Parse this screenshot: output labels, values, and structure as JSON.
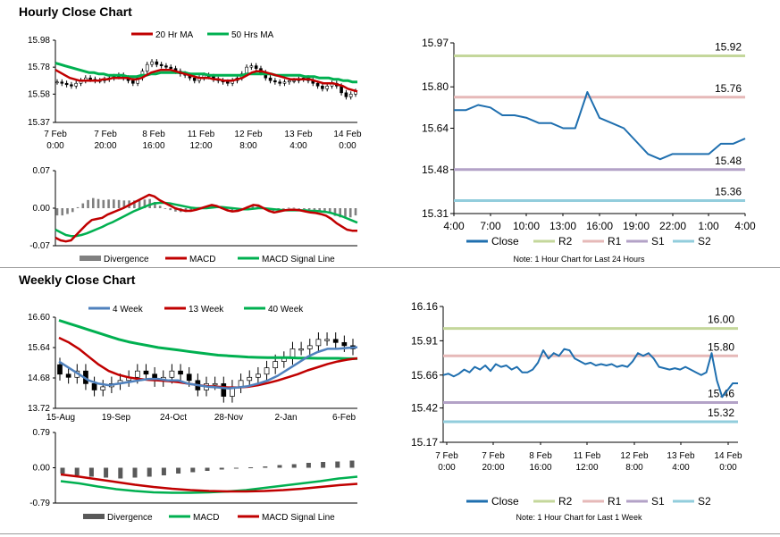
{
  "sections": {
    "hourly_title": "Hourly Close Chart",
    "weekly_title": "Weekly Close Chart"
  },
  "colors": {
    "red": "#c00000",
    "green": "#00b050",
    "blue": "#4f81bd",
    "close_blue": "#1f6faf",
    "r2": "#c4d79b",
    "r1": "#e6b9b8",
    "s1": "#b3a2c7",
    "s2": "#92cddc",
    "divergence": "#808080"
  },
  "chart_data": [
    {
      "id": "hourly-price",
      "type": "candlestick",
      "legend": [
        "20 Hr MA",
        "50 Hrs MA"
      ],
      "ylim": [
        15.37,
        15.98
      ],
      "yticks": [
        "15.98",
        "15.78",
        "15.58",
        "15.37"
      ],
      "xticks": [
        [
          "7 Feb",
          "0:00"
        ],
        [
          "7 Feb",
          "20:00"
        ],
        [
          "8 Feb",
          "16:00"
        ],
        [
          "11 Feb",
          "12:00"
        ],
        [
          "12 Feb",
          "8:00"
        ],
        [
          "13 Feb",
          "4:00"
        ],
        [
          "14 Feb",
          "0:00"
        ]
      ],
      "close": [
        15.67,
        15.66,
        15.65,
        15.64,
        15.66,
        15.68,
        15.7,
        15.69,
        15.68,
        15.68,
        15.69,
        15.7,
        15.71,
        15.72,
        15.7,
        15.68,
        15.66,
        15.7,
        15.75,
        15.8,
        15.82,
        15.8,
        15.79,
        15.78,
        15.77,
        15.75,
        15.73,
        15.72,
        15.7,
        15.68,
        15.7,
        15.72,
        15.71,
        15.69,
        15.68,
        15.67,
        15.66,
        15.68,
        15.7,
        15.73,
        15.78,
        15.79,
        15.77,
        15.74,
        15.7,
        15.68,
        15.67,
        15.66,
        15.67,
        15.68,
        15.68,
        15.69,
        15.7,
        15.68,
        15.66,
        15.64,
        15.62,
        15.64,
        15.66,
        15.64,
        15.59,
        15.56,
        15.58,
        15.6
      ],
      "ma20": [
        15.76,
        15.74,
        15.72,
        15.7,
        15.69,
        15.68,
        15.68,
        15.68,
        15.68,
        15.68,
        15.69,
        15.69,
        15.7,
        15.7,
        15.7,
        15.7,
        15.69,
        15.69,
        15.7,
        15.72,
        15.74,
        15.75,
        15.76,
        15.76,
        15.76,
        15.75,
        15.74,
        15.73,
        15.72,
        15.71,
        15.7,
        15.7,
        15.7,
        15.69,
        15.69,
        15.68,
        15.68,
        15.68,
        15.69,
        15.7,
        15.72,
        15.74,
        15.75,
        15.75,
        15.74,
        15.73,
        15.72,
        15.71,
        15.7,
        15.69,
        15.69,
        15.69,
        15.69,
        15.69,
        15.68,
        15.67,
        15.66,
        15.66,
        15.66,
        15.65,
        15.64,
        15.62,
        15.61,
        15.6
      ],
      "ma50": [
        15.81,
        15.8,
        15.79,
        15.78,
        15.77,
        15.76,
        15.75,
        15.74,
        15.74,
        15.73,
        15.73,
        15.72,
        15.72,
        15.72,
        15.72,
        15.71,
        15.71,
        15.71,
        15.72,
        15.72,
        15.73,
        15.73,
        15.74,
        15.74,
        15.74,
        15.74,
        15.74,
        15.74,
        15.73,
        15.73,
        15.73,
        15.73,
        15.72,
        15.72,
        15.72,
        15.72,
        15.72,
        15.72,
        15.72,
        15.72,
        15.73,
        15.73,
        15.73,
        15.73,
        15.73,
        15.73,
        15.72,
        15.72,
        15.72,
        15.72,
        15.72,
        15.72,
        15.71,
        15.71,
        15.71,
        15.7,
        15.7,
        15.7,
        15.69,
        15.69,
        15.68,
        15.68,
        15.67,
        15.67
      ]
    },
    {
      "id": "hourly-macd",
      "type": "macd",
      "legend": [
        "Divergence",
        "MACD",
        "MACD Signal Line"
      ],
      "ylim": [
        -0.07,
        0.07
      ],
      "yticks": [
        "0.07",
        "0.00",
        "-0.07"
      ],
      "macd": [
        -0.055,
        -0.06,
        -0.062,
        -0.06,
        -0.05,
        -0.04,
        -0.03,
        -0.022,
        -0.02,
        -0.018,
        -0.012,
        -0.008,
        -0.004,
        0.0,
        0.005,
        0.01,
        0.015,
        0.02,
        0.025,
        0.022,
        0.015,
        0.01,
        0.005,
        0.0,
        -0.003,
        -0.005,
        -0.005,
        -0.003,
        0.0,
        0.003,
        0.006,
        0.004,
        0.0,
        -0.004,
        -0.006,
        -0.005,
        -0.002,
        0.002,
        0.006,
        0.005,
        0.0,
        -0.005,
        -0.008,
        -0.006,
        -0.004,
        -0.003,
        -0.003,
        -0.004,
        -0.006,
        -0.008,
        -0.009,
        -0.011,
        -0.014,
        -0.02,
        -0.028,
        -0.034,
        -0.04,
        -0.042,
        -0.042
      ],
      "signal": [
        -0.04,
        -0.045,
        -0.05,
        -0.052,
        -0.052,
        -0.05,
        -0.047,
        -0.043,
        -0.039,
        -0.035,
        -0.03,
        -0.026,
        -0.021,
        -0.016,
        -0.011,
        -0.006,
        -0.002,
        0.002,
        0.006,
        0.009,
        0.01,
        0.01,
        0.009,
        0.007,
        0.005,
        0.003,
        0.001,
        0.0,
        0.0,
        0.0,
        0.001,
        0.002,
        0.002,
        0.001,
        0.0,
        -0.001,
        -0.002,
        -0.002,
        -0.001,
        0.0,
        0.0,
        -0.001,
        -0.002,
        -0.003,
        -0.004,
        -0.004,
        -0.004,
        -0.004,
        -0.004,
        -0.005,
        -0.005,
        -0.006,
        -0.007,
        -0.009,
        -0.012,
        -0.015,
        -0.019,
        -0.023,
        -0.027
      ]
    },
    {
      "id": "hourly-levels",
      "type": "line",
      "ylim": [
        15.31,
        15.97
      ],
      "yticks": [
        "15.97",
        "15.80",
        "15.64",
        "15.48",
        "15.31"
      ],
      "xticks": [
        "4:00",
        "7:00",
        "10:00",
        "13:00",
        "16:00",
        "19:00",
        "22:00",
        "1:00",
        "4:00"
      ],
      "close": [
        15.71,
        15.71,
        15.73,
        15.72,
        15.69,
        15.69,
        15.68,
        15.66,
        15.66,
        15.64,
        15.64,
        15.78,
        15.68,
        15.66,
        15.64,
        15.59,
        15.54,
        15.52,
        15.54,
        15.54,
        15.54,
        15.54,
        15.58,
        15.58,
        15.6
      ],
      "levels": [
        {
          "name": "R2",
          "value": 15.92,
          "label": "15.92"
        },
        {
          "name": "R1",
          "value": 15.76,
          "label": "15.76"
        },
        {
          "name": "S1",
          "value": 15.48,
          "label": "15.48"
        },
        {
          "name": "S2",
          "value": 15.36,
          "label": "15.36"
        }
      ],
      "legend": [
        "Close",
        "R2",
        "R1",
        "S1",
        "S2"
      ],
      "note": "Note: 1 Hour Chart for Last 24 Hours"
    },
    {
      "id": "weekly-price",
      "type": "candlestick",
      "legend": [
        "4 Week",
        "13 Week",
        "40 Week"
      ],
      "ylim": [
        13.72,
        16.6
      ],
      "yticks": [
        "16.60",
        "15.64",
        "14.68",
        "13.72"
      ],
      "xticks": [
        "15-Aug",
        "19-Sep",
        "24-Oct",
        "28-Nov",
        "2-Jan",
        "6-Feb"
      ],
      "close": [
        14.8,
        14.7,
        14.9,
        14.5,
        14.3,
        14.4,
        14.5,
        14.6,
        14.7,
        14.9,
        14.8,
        14.6,
        14.7,
        14.9,
        14.8,
        14.6,
        14.3,
        14.5,
        14.5,
        14.1,
        14.4,
        14.6,
        14.7,
        14.8,
        15.0,
        15.2,
        15.3,
        15.6,
        15.6,
        15.7,
        15.9,
        15.9,
        15.8,
        15.7,
        15.6
      ],
      "ma4": [
        15.2,
        15.0,
        14.8,
        14.6,
        14.5,
        14.45,
        14.5,
        14.55,
        14.6,
        14.65,
        14.65,
        14.6,
        14.6,
        14.5,
        14.45,
        14.4,
        14.38,
        14.35,
        14.38,
        14.42,
        14.5,
        14.6,
        14.75,
        14.95,
        15.15,
        15.35,
        15.5,
        15.6,
        15.6,
        15.63,
        15.65
      ],
      "ma13": [
        15.95,
        15.8,
        15.6,
        15.35,
        15.1,
        14.9,
        14.78,
        14.7,
        14.65,
        14.62,
        14.6,
        14.58,
        14.55,
        14.5,
        14.45,
        14.42,
        14.4,
        14.38,
        14.38,
        14.4,
        14.45,
        14.52,
        14.6,
        14.7,
        14.8,
        14.92,
        15.02,
        15.12,
        15.2,
        15.26,
        15.3
      ],
      "ma40": [
        16.5,
        16.4,
        16.3,
        16.2,
        16.1,
        16.0,
        15.9,
        15.82,
        15.76,
        15.7,
        15.64,
        15.6,
        15.56,
        15.52,
        15.48,
        15.44,
        15.4,
        15.38,
        15.36,
        15.34,
        15.33,
        15.32,
        15.32,
        15.32,
        15.31,
        15.31,
        15.3,
        15.3,
        15.3,
        15.29,
        15.29
      ]
    },
    {
      "id": "weekly-macd",
      "type": "macd",
      "legend": [
        "Divergence",
        "MACD",
        "MACD Signal Line"
      ],
      "ylim": [
        -0.79,
        0.79
      ],
      "yticks": [
        "0.79",
        "0.00",
        "-0.79"
      ],
      "divergence": [
        -0.13,
        -0.17,
        -0.2,
        -0.22,
        -0.24,
        -0.22,
        -0.2,
        -0.17,
        -0.13,
        -0.1,
        -0.07,
        -0.04,
        -0.02,
        0.01,
        0.03,
        0.06,
        0.08,
        0.11,
        0.13,
        0.14,
        0.16
      ],
      "macd": [
        -0.3,
        -0.35,
        -0.42,
        -0.48,
        -0.52,
        -0.55,
        -0.56,
        -0.56,
        -0.55,
        -0.53,
        -0.5,
        -0.45,
        -0.4,
        -0.35,
        -0.3,
        -0.24,
        -0.2
      ],
      "signal": [
        -0.15,
        -0.2,
        -0.26,
        -0.32,
        -0.38,
        -0.43,
        -0.47,
        -0.5,
        -0.52,
        -0.53,
        -0.53,
        -0.52,
        -0.5,
        -0.47,
        -0.43,
        -0.39,
        -0.36
      ]
    },
    {
      "id": "weekly-levels",
      "type": "line",
      "ylim": [
        15.17,
        16.16
      ],
      "yticks": [
        "16.16",
        "15.91",
        "15.66",
        "15.42",
        "15.17"
      ],
      "xticks": [
        [
          "7 Feb",
          "0:00"
        ],
        [
          "7 Feb",
          "20:00"
        ],
        [
          "8 Feb",
          "16:00"
        ],
        [
          "11 Feb",
          "12:00"
        ],
        [
          "12 Feb",
          "8:00"
        ],
        [
          "13 Feb",
          "4:00"
        ],
        [
          "14 Feb",
          "0:00"
        ]
      ],
      "close": [
        15.66,
        15.67,
        15.65,
        15.67,
        15.7,
        15.68,
        15.72,
        15.7,
        15.73,
        15.69,
        15.74,
        15.72,
        15.73,
        15.7,
        15.72,
        15.68,
        15.68,
        15.7,
        15.75,
        15.84,
        15.78,
        15.82,
        15.8,
        15.85,
        15.84,
        15.78,
        15.76,
        15.74,
        15.75,
        15.73,
        15.74,
        15.73,
        15.74,
        15.72,
        15.73,
        15.72,
        15.76,
        15.82,
        15.8,
        15.82,
        15.78,
        15.72,
        15.71,
        15.7,
        15.71,
        15.7,
        15.72,
        15.7,
        15.68,
        15.66,
        15.68,
        15.82,
        15.62,
        15.5,
        15.55,
        15.6,
        15.6
      ],
      "levels": [
        {
          "name": "R2",
          "value": 16.0,
          "label": "16.00"
        },
        {
          "name": "R1",
          "value": 15.8,
          "label": "15.80"
        },
        {
          "name": "S1",
          "value": 15.46,
          "label": "15.46"
        },
        {
          "name": "S2",
          "value": 15.32,
          "label": "15.32"
        }
      ],
      "legend": [
        "Close",
        "R2",
        "R1",
        "S1",
        "S2"
      ],
      "note": "Note: 1 Hour Chart for Last 1 Week"
    }
  ]
}
